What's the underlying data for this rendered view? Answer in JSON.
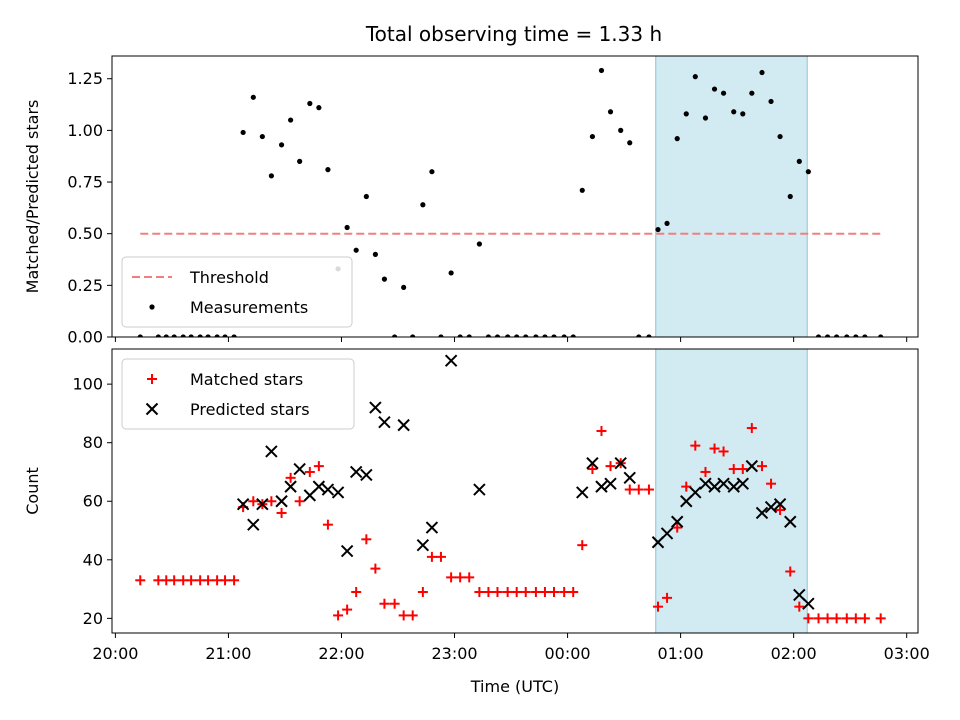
{
  "title": "Total observing time = 1.33 h",
  "chart_data": [
    {
      "type": "scatter",
      "panel": "top",
      "ylabel": "Matched/Predicted stars",
      "ylim": [
        0,
        1.36
      ],
      "yticks": [
        0.0,
        0.25,
        0.5,
        0.75,
        1.0,
        1.25
      ],
      "ytick_labels": [
        "0.00",
        "0.25",
        "0.50",
        "0.75",
        "1.00",
        "1.25"
      ],
      "highlight": {
        "x_start": 24.78,
        "x_end": 26.12,
        "color": "#add8e6"
      },
      "series": [
        {
          "name": "Threshold",
          "style": "dashed-line",
          "color": "#f08080",
          "x": [
            20.22,
            26.77
          ],
          "y": [
            0.5,
            0.5
          ]
        },
        {
          "name": "Measurements",
          "style": "dot",
          "color": "#000000",
          "x": [
            20.22,
            20.38,
            20.45,
            20.52,
            20.6,
            20.67,
            20.75,
            20.82,
            20.9,
            20.97,
            21.05,
            21.13,
            21.22,
            21.3,
            21.38,
            21.47,
            21.55,
            21.63,
            21.72,
            21.8,
            21.88,
            21.97,
            22.05,
            22.13,
            22.22,
            22.3,
            22.38,
            22.47,
            22.55,
            22.63,
            22.72,
            22.8,
            22.88,
            22.97,
            23.05,
            23.13,
            23.22,
            23.3,
            23.38,
            23.47,
            23.55,
            23.63,
            23.72,
            23.8,
            23.88,
            23.97,
            24.05,
            24.13,
            24.22,
            24.3,
            24.38,
            24.47,
            24.55,
            24.63,
            24.72,
            24.8,
            24.88,
            24.97,
            25.05,
            25.13,
            25.22,
            25.3,
            25.38,
            25.47,
            25.55,
            25.63,
            25.72,
            25.8,
            25.88,
            25.97,
            26.05,
            26.13,
            26.22,
            26.3,
            26.38,
            26.47,
            26.55,
            26.63,
            26.77
          ],
          "y": [
            0.0,
            0.0,
            0.0,
            0.0,
            0.0,
            0.0,
            0.0,
            0.0,
            0.0,
            0.0,
            0.0,
            0.99,
            1.16,
            0.97,
            0.78,
            0.93,
            1.05,
            0.85,
            1.13,
            1.11,
            0.81,
            0.33,
            0.53,
            0.42,
            0.68,
            0.4,
            0.28,
            0.0,
            0.24,
            0.0,
            0.64,
            0.8,
            0.0,
            0.31,
            0.0,
            0.0,
            0.45,
            0.0,
            0.0,
            0.0,
            0.0,
            0.0,
            0.0,
            0.0,
            0.0,
            0.0,
            0.0,
            0.71,
            0.97,
            1.29,
            1.09,
            1.0,
            0.94,
            0.0,
            0.0,
            0.52,
            0.55,
            0.96,
            1.08,
            1.26,
            1.06,
            1.2,
            1.18,
            1.09,
            1.08,
            1.18,
            1.28,
            1.14,
            0.97,
            0.68,
            0.85,
            0.8,
            0.0,
            0.0,
            0.0,
            0.0,
            0.0,
            0.0,
            0.0
          ]
        }
      ],
      "legend": {
        "position": "lower-left",
        "entries": [
          "Threshold",
          "Measurements"
        ]
      }
    },
    {
      "type": "scatter",
      "panel": "bottom",
      "xlabel": "Time (UTC)",
      "ylabel": "Count",
      "xlim": [
        19.97,
        27.1
      ],
      "ylim": [
        15,
        112
      ],
      "xticks": [
        20,
        21,
        22,
        23,
        24,
        25,
        26,
        27
      ],
      "xtick_labels": [
        "20:00",
        "21:00",
        "22:00",
        "23:00",
        "00:00",
        "01:00",
        "02:00",
        "03:00"
      ],
      "yticks": [
        20,
        40,
        60,
        80,
        100
      ],
      "ytick_labels": [
        "20",
        "40",
        "60",
        "80",
        "100"
      ],
      "highlight": {
        "x_start": 24.78,
        "x_end": 26.12,
        "color": "#add8e6"
      },
      "series": [
        {
          "name": "Matched stars",
          "marker": "plus",
          "color": "#ff0000",
          "x": [
            20.22,
            20.38,
            20.45,
            20.52,
            20.6,
            20.67,
            20.75,
            20.82,
            20.9,
            20.97,
            21.05,
            21.13,
            21.22,
            21.3,
            21.38,
            21.47,
            21.55,
            21.63,
            21.72,
            21.8,
            21.88,
            21.97,
            22.05,
            22.13,
            22.22,
            22.3,
            22.38,
            22.47,
            22.55,
            22.63,
            22.72,
            22.8,
            22.88,
            22.97,
            23.05,
            23.13,
            23.22,
            23.3,
            23.38,
            23.47,
            23.55,
            23.63,
            23.72,
            23.8,
            23.88,
            23.97,
            24.05,
            24.13,
            24.22,
            24.3,
            24.38,
            24.47,
            24.55,
            24.63,
            24.72,
            24.8,
            24.88,
            24.97,
            25.05,
            25.13,
            25.22,
            25.3,
            25.38,
            25.47,
            25.55,
            25.63,
            25.72,
            25.8,
            25.88,
            25.97,
            26.05,
            26.13,
            26.22,
            26.3,
            26.38,
            26.47,
            26.55,
            26.63,
            26.77
          ],
          "y": [
            33,
            33,
            33,
            33,
            33,
            33,
            33,
            33,
            33,
            33,
            33,
            58,
            60,
            59,
            60,
            56,
            68,
            60,
            70,
            72,
            52,
            21,
            23,
            29,
            47,
            37,
            25,
            25,
            21,
            21,
            29,
            41,
            41,
            34,
            34,
            34,
            29,
            29,
            29,
            29,
            29,
            29,
            29,
            29,
            29,
            29,
            29,
            45,
            71,
            84,
            72,
            73,
            64,
            64,
            64,
            24,
            27,
            51,
            65,
            79,
            70,
            78,
            77,
            71,
            71,
            85,
            72,
            66,
            57,
            36,
            24,
            20,
            20,
            20,
            20,
            20,
            20,
            20,
            20
          ]
        },
        {
          "name": "Predicted stars",
          "marker": "x",
          "color": "#000000",
          "x": [
            21.13,
            21.22,
            21.3,
            21.38,
            21.47,
            21.55,
            21.63,
            21.72,
            21.8,
            21.88,
            21.97,
            22.05,
            22.13,
            22.22,
            22.3,
            22.38,
            22.55,
            22.72,
            22.8,
            22.97,
            23.22,
            24.13,
            24.22,
            24.3,
            24.38,
            24.47,
            24.55,
            24.8,
            24.88,
            24.97,
            25.05,
            25.13,
            25.22,
            25.3,
            25.38,
            25.47,
            25.55,
            25.63,
            25.72,
            25.8,
            25.88,
            25.97,
            26.05,
            26.13
          ],
          "y": [
            59,
            52,
            59,
            77,
            60,
            65,
            71,
            62,
            65,
            64,
            63,
            43,
            70,
            69,
            92,
            87,
            86,
            45,
            51,
            108,
            64,
            63,
            73,
            65,
            66,
            73,
            68,
            46,
            49,
            53,
            60,
            63,
            66,
            65,
            66,
            65,
            66,
            72,
            56,
            58,
            59,
            53,
            28,
            25
          ]
        }
      ],
      "legend": {
        "position": "upper-left",
        "entries": [
          "Matched stars",
          "Predicted stars"
        ]
      }
    }
  ]
}
